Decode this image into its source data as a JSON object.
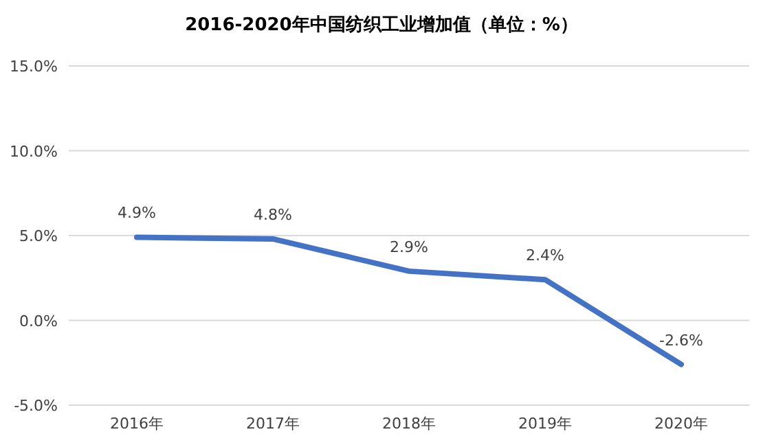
{
  "chart_data": {
    "type": "line",
    "title": "2016-2020年中国纺织工业增加值（单位：%）",
    "categories": [
      "2016年",
      "2017年",
      "2018年",
      "2019年",
      "2020年"
    ],
    "series": [
      {
        "color": "#4472c4",
        "values": [
          4.9,
          4.8,
          2.9,
          2.4,
          -2.6
        ],
        "value_labels": [
          "4.9%",
          "4.8%",
          "2.9%",
          "2.4%",
          "-2.6%"
        ]
      }
    ],
    "ylim": [
      -5,
      15
    ],
    "yticks": [
      {
        "value": -5,
        "label": "-5.0%"
      },
      {
        "value": 0,
        "label": "0.0%"
      },
      {
        "value": 5,
        "label": "5.0%"
      },
      {
        "value": 10,
        "label": "10.0%"
      },
      {
        "value": 15,
        "label": "15.0%"
      }
    ],
    "grid": "y"
  }
}
